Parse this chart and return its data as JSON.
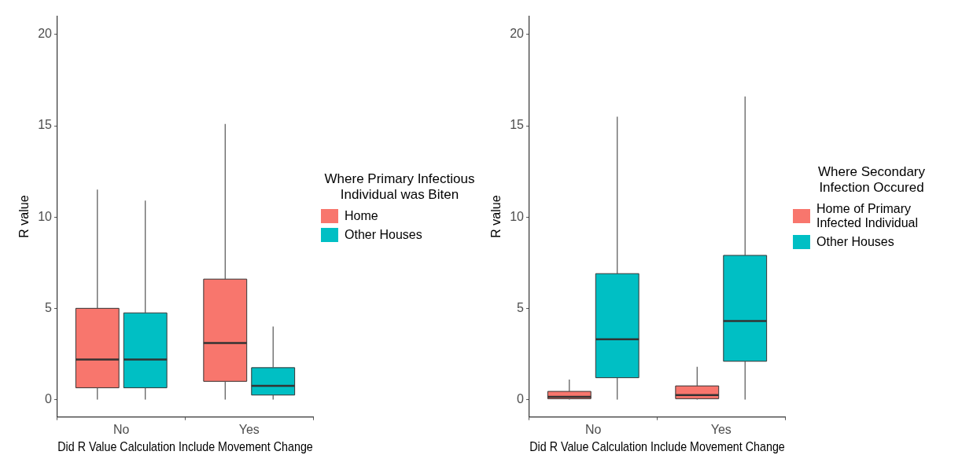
{
  "chart_data": [
    {
      "type": "box",
      "xlabel": "Did R Value Calculation Include Movement Change",
      "ylabel": "R value",
      "legend_title": "Where Primary Infectious Individual was Biten",
      "legend": "right",
      "grid": false,
      "categories": [
        "No",
        "Yes"
      ],
      "ylim": [
        -0.95,
        21
      ],
      "yticks": [
        0,
        5,
        10,
        15,
        20
      ],
      "series": [
        {
          "name": "Home",
          "color": "#f8766d",
          "boxes": [
            {
              "low": 0,
              "q1": 0.65,
              "median": 2.2,
              "q3": 5.0,
              "high": 11.5
            },
            {
              "low": 0,
              "q1": 1.0,
              "median": 3.1,
              "q3": 6.6,
              "high": 15.1
            }
          ]
        },
        {
          "name": "Other Houses",
          "color": "#00bfc4",
          "boxes": [
            {
              "low": 0,
              "q1": 0.65,
              "median": 2.2,
              "q3": 4.75,
              "high": 10.9
            },
            {
              "low": 0,
              "q1": 0.25,
              "median": 0.75,
              "q3": 1.75,
              "high": 4.0
            }
          ]
        }
      ]
    },
    {
      "type": "box",
      "xlabel": "Did R Value Calculation Include Movement Change",
      "ylabel": "R value",
      "legend_title": "Where Secondary Infection Occured",
      "legend": "right",
      "grid": false,
      "categories": [
        "No",
        "Yes"
      ],
      "ylim": [
        -0.95,
        21
      ],
      "yticks": [
        0,
        5,
        10,
        15,
        20
      ],
      "series": [
        {
          "name": "Home of Primary Infected Individual",
          "color": "#f8766d",
          "boxes": [
            {
              "low": 0,
              "q1": 0.05,
              "median": 0.15,
              "q3": 0.45,
              "high": 1.1
            },
            {
              "low": 0,
              "q1": 0.05,
              "median": 0.25,
              "q3": 0.75,
              "high": 1.8
            }
          ]
        },
        {
          "name": "Other Houses",
          "color": "#00bfc4",
          "boxes": [
            {
              "low": 0,
              "q1": 1.2,
              "median": 3.3,
              "q3": 6.9,
              "high": 15.5
            },
            {
              "low": 0,
              "q1": 2.1,
              "median": 4.3,
              "q3": 7.9,
              "high": 16.6
            }
          ]
        }
      ]
    }
  ]
}
